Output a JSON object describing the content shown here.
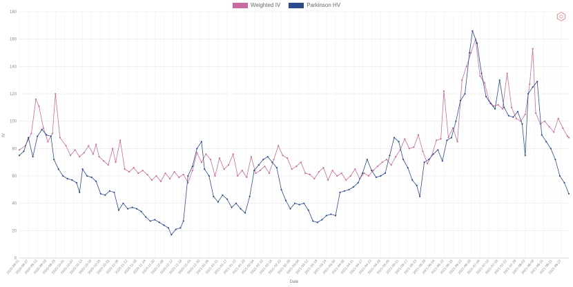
{
  "chart_data": {
    "type": "line",
    "title": "",
    "xlabel": "Date",
    "ylabel": "IV",
    "ylim": [
      0,
      180
    ],
    "yticks": [
      0,
      20,
      40,
      60,
      80,
      100,
      120,
      140,
      160,
      180
    ],
    "grid": true,
    "legend_position": "top-center",
    "x_range": [
      "2020-09-01",
      "2021-09-01"
    ],
    "xtick_labels": [
      "2020-09-01",
      "2020-09-07",
      "2020-09-13",
      "2020-09-19",
      "2020-09-25",
      "2020-10-01",
      "2020-10-07",
      "2020-10-13",
      "2020-10-19",
      "2020-10-25",
      "2020-10-31",
      "2020-11-06",
      "2020-11-12",
      "2020-11-18",
      "2020-11-24",
      "2020-11-30",
      "2020-12-06",
      "2020-12-12",
      "2020-12-18",
      "2020-12-24",
      "2020-12-30",
      "2021-01-05",
      "2021-01-11",
      "2021-01-17",
      "2021-01-23",
      "2021-01-29",
      "2021-02-04",
      "2021-02-10",
      "2021-02-16",
      "2021-02-22",
      "2021-02-28",
      "2021-03-06",
      "2021-03-12",
      "2021-03-18",
      "2021-03-24",
      "2021-03-30",
      "2021-04-05",
      "2021-04-11",
      "2021-04-17",
      "2021-04-23",
      "2021-04-29",
      "2021-05-05",
      "2021-05-11",
      "2021-05-17",
      "2021-05-23",
      "2021-05-29",
      "2021-06-04",
      "2021-06-10",
      "2021-06-16",
      "2021-06-22",
      "2021-06-28",
      "2021-07-04",
      "2021-07-10",
      "2021-07-16",
      "2021-07-22",
      "2021-07-28",
      "2021-08-03",
      "2021-08-09",
      "2021-08-15",
      "2021-08-21",
      "2021-08-27"
    ],
    "series": [
      {
        "name": "Weighted IV",
        "color": "#c86b9e",
        "points": [
          [
            "2020-09-01",
            79
          ],
          [
            "2020-09-05",
            82
          ],
          [
            "2020-09-09",
            91
          ],
          [
            "2020-09-12",
            116
          ],
          [
            "2020-09-14",
            111
          ],
          [
            "2020-09-17",
            95
          ],
          [
            "2020-09-20",
            85
          ],
          [
            "2020-09-23",
            91
          ],
          [
            "2020-09-25",
            120
          ],
          [
            "2020-09-28",
            88
          ],
          [
            "2020-10-02",
            82
          ],
          [
            "2020-10-05",
            75
          ],
          [
            "2020-10-08",
            79
          ],
          [
            "2020-10-11",
            74
          ],
          [
            "2020-10-14",
            77
          ],
          [
            "2020-10-17",
            82
          ],
          [
            "2020-10-20",
            76
          ],
          [
            "2020-10-22",
            83
          ],
          [
            "2020-10-24",
            74
          ],
          [
            "2020-10-27",
            71
          ],
          [
            "2020-10-30",
            68
          ],
          [
            "2020-11-02",
            80
          ],
          [
            "2020-11-04",
            70
          ],
          [
            "2020-11-07",
            86
          ],
          [
            "2020-11-10",
            65
          ],
          [
            "2020-11-13",
            63
          ],
          [
            "2020-11-16",
            66
          ],
          [
            "2020-11-19",
            62
          ],
          [
            "2020-11-22",
            64
          ],
          [
            "2020-11-25",
            61
          ],
          [
            "2020-11-28",
            57
          ],
          [
            "2020-12-01",
            60
          ],
          [
            "2020-12-04",
            56
          ],
          [
            "2020-12-07",
            62
          ],
          [
            "2020-12-10",
            58
          ],
          [
            "2020-12-13",
            63
          ],
          [
            "2020-12-16",
            59
          ],
          [
            "2020-12-19",
            61
          ],
          [
            "2020-12-22",
            55
          ],
          [
            "2020-12-25",
            64
          ],
          [
            "2020-12-28",
            77
          ],
          [
            "2020-12-31",
            70
          ],
          [
            "2021-01-03",
            76
          ],
          [
            "2021-01-06",
            72
          ],
          [
            "2021-01-09",
            60
          ],
          [
            "2021-01-12",
            73
          ],
          [
            "2021-01-15",
            65
          ],
          [
            "2021-01-18",
            68
          ],
          [
            "2021-01-21",
            76
          ],
          [
            "2021-01-24",
            60
          ],
          [
            "2021-01-27",
            64
          ],
          [
            "2021-01-30",
            59
          ],
          [
            "2021-02-02",
            74
          ],
          [
            "2021-02-05",
            62
          ],
          [
            "2021-02-08",
            64
          ],
          [
            "2021-02-11",
            67
          ],
          [
            "2021-02-14",
            62
          ],
          [
            "2021-02-17",
            72
          ],
          [
            "2021-02-20",
            82
          ],
          [
            "2021-02-23",
            75
          ],
          [
            "2021-02-26",
            73
          ],
          [
            "2021-03-01",
            65
          ],
          [
            "2021-03-04",
            67
          ],
          [
            "2021-03-07",
            70
          ],
          [
            "2021-03-10",
            62
          ],
          [
            "2021-03-13",
            61
          ],
          [
            "2021-03-16",
            58
          ],
          [
            "2021-03-19",
            63
          ],
          [
            "2021-03-22",
            66
          ],
          [
            "2021-03-25",
            57
          ],
          [
            "2021-03-28",
            64
          ],
          [
            "2021-03-31",
            60
          ],
          [
            "2021-04-03",
            62
          ],
          [
            "2021-04-06",
            57
          ],
          [
            "2021-04-09",
            60
          ],
          [
            "2021-04-12",
            65
          ],
          [
            "2021-04-15",
            58
          ],
          [
            "2021-04-18",
            62
          ],
          [
            "2021-04-21",
            60
          ],
          [
            "2021-04-24",
            64
          ],
          [
            "2021-04-27",
            67
          ],
          [
            "2021-04-30",
            70
          ],
          [
            "2021-05-03",
            72
          ],
          [
            "2021-05-06",
            68
          ],
          [
            "2021-05-09",
            74
          ],
          [
            "2021-05-12",
            79
          ],
          [
            "2021-05-15",
            87
          ],
          [
            "2021-05-18",
            80
          ],
          [
            "2021-05-21",
            81
          ],
          [
            "2021-05-24",
            90
          ],
          [
            "2021-05-27",
            78
          ],
          [
            "2021-05-30",
            69
          ],
          [
            "2021-06-02",
            75
          ],
          [
            "2021-06-05",
            86
          ],
          [
            "2021-06-08",
            87
          ],
          [
            "2021-06-10",
            122
          ],
          [
            "2021-06-13",
            88
          ],
          [
            "2021-06-16",
            95
          ],
          [
            "2021-06-19",
            85
          ],
          [
            "2021-06-22",
            130
          ],
          [
            "2021-06-25",
            140
          ],
          [
            "2021-06-28",
            150
          ],
          [
            "2021-07-01",
            160
          ],
          [
            "2021-07-04",
            133
          ],
          [
            "2021-07-07",
            128
          ],
          [
            "2021-07-10",
            115
          ],
          [
            "2021-07-13",
            111
          ],
          [
            "2021-07-16",
            112
          ],
          [
            "2021-07-19",
            109
          ],
          [
            "2021-07-22",
            135
          ],
          [
            "2021-07-25",
            110
          ],
          [
            "2021-07-28",
            102
          ],
          [
            "2021-07-31",
            100
          ],
          [
            "2021-08-03",
            105
          ],
          [
            "2021-08-06",
            127
          ],
          [
            "2021-08-08",
            153
          ],
          [
            "2021-08-10",
            106
          ],
          [
            "2021-08-13",
            98
          ],
          [
            "2021-08-16",
            100
          ],
          [
            "2021-08-19",
            96
          ],
          [
            "2021-08-22",
            92
          ],
          [
            "2021-08-25",
            102
          ],
          [
            "2021-08-28",
            95
          ],
          [
            "2021-08-31",
            89
          ],
          [
            "2021-09-01",
            88
          ]
        ]
      },
      {
        "name": "Parkinson HV",
        "color": "#2b4a8b",
        "points": [
          [
            "2020-09-01",
            75
          ],
          [
            "2020-09-04",
            78
          ],
          [
            "2020-09-07",
            88
          ],
          [
            "2020-09-10",
            74
          ],
          [
            "2020-09-13",
            89
          ],
          [
            "2020-09-16",
            94
          ],
          [
            "2020-09-19",
            90
          ],
          [
            "2020-09-22",
            89
          ],
          [
            "2020-09-24",
            72
          ],
          [
            "2020-09-27",
            65
          ],
          [
            "2020-09-30",
            60
          ],
          [
            "2020-10-03",
            58
          ],
          [
            "2020-10-06",
            57
          ],
          [
            "2020-10-09",
            55
          ],
          [
            "2020-10-11",
            48
          ],
          [
            "2020-10-13",
            65
          ],
          [
            "2020-10-16",
            60
          ],
          [
            "2020-10-19",
            59
          ],
          [
            "2020-10-22",
            56
          ],
          [
            "2020-10-25",
            47
          ],
          [
            "2020-10-28",
            46
          ],
          [
            "2020-10-31",
            49
          ],
          [
            "2020-11-03",
            48
          ],
          [
            "2020-11-06",
            35
          ],
          [
            "2020-11-09",
            40
          ],
          [
            "2020-11-12",
            36
          ],
          [
            "2020-11-15",
            37
          ],
          [
            "2020-11-18",
            36
          ],
          [
            "2020-11-21",
            34
          ],
          [
            "2020-11-24",
            30
          ],
          [
            "2020-11-27",
            27
          ],
          [
            "2020-11-30",
            28
          ],
          [
            "2020-12-03",
            26
          ],
          [
            "2020-12-06",
            24
          ],
          [
            "2020-12-09",
            22
          ],
          [
            "2020-12-11",
            17
          ],
          [
            "2020-12-14",
            21
          ],
          [
            "2020-12-17",
            22
          ],
          [
            "2020-12-19",
            27
          ],
          [
            "2020-12-22",
            60
          ],
          [
            "2020-12-25",
            67
          ],
          [
            "2020-12-28",
            80
          ],
          [
            "2020-12-31",
            85
          ],
          [
            "2021-01-02",
            65
          ],
          [
            "2021-01-05",
            60
          ],
          [
            "2021-01-08",
            45
          ],
          [
            "2021-01-11",
            41
          ],
          [
            "2021-01-14",
            46
          ],
          [
            "2021-01-17",
            43
          ],
          [
            "2021-01-20",
            37
          ],
          [
            "2021-01-23",
            40
          ],
          [
            "2021-01-26",
            36
          ],
          [
            "2021-01-29",
            33
          ],
          [
            "2021-02-01",
            45
          ],
          [
            "2021-02-04",
            64
          ],
          [
            "2021-02-07",
            68
          ],
          [
            "2021-02-10",
            72
          ],
          [
            "2021-02-13",
            74
          ],
          [
            "2021-02-16",
            70
          ],
          [
            "2021-02-19",
            66
          ],
          [
            "2021-02-22",
            50
          ],
          [
            "2021-02-25",
            42
          ],
          [
            "2021-02-28",
            36
          ],
          [
            "2021-03-03",
            40
          ],
          [
            "2021-03-06",
            39
          ],
          [
            "2021-03-09",
            40
          ],
          [
            "2021-03-12",
            35
          ],
          [
            "2021-03-15",
            27
          ],
          [
            "2021-03-18",
            26
          ],
          [
            "2021-03-21",
            28
          ],
          [
            "2021-03-24",
            31
          ],
          [
            "2021-03-27",
            32
          ],
          [
            "2021-03-30",
            31
          ],
          [
            "2021-04-02",
            48
          ],
          [
            "2021-04-05",
            49
          ],
          [
            "2021-04-08",
            50
          ],
          [
            "2021-04-11",
            52
          ],
          [
            "2021-04-14",
            55
          ],
          [
            "2021-04-17",
            62
          ],
          [
            "2021-04-20",
            72
          ],
          [
            "2021-04-23",
            64
          ],
          [
            "2021-04-26",
            59
          ],
          [
            "2021-04-29",
            60
          ],
          [
            "2021-05-02",
            62
          ],
          [
            "2021-05-05",
            75
          ],
          [
            "2021-05-08",
            88
          ],
          [
            "2021-05-11",
            85
          ],
          [
            "2021-05-14",
            72
          ],
          [
            "2021-05-17",
            66
          ],
          [
            "2021-05-20",
            57
          ],
          [
            "2021-05-23",
            53
          ],
          [
            "2021-05-25",
            45
          ],
          [
            "2021-05-28",
            70
          ],
          [
            "2021-05-31",
            72
          ],
          [
            "2021-06-03",
            76
          ],
          [
            "2021-06-06",
            79
          ],
          [
            "2021-06-09",
            71
          ],
          [
            "2021-06-12",
            86
          ],
          [
            "2021-06-15",
            88
          ],
          [
            "2021-06-18",
            100
          ],
          [
            "2021-06-21",
            115
          ],
          [
            "2021-06-24",
            120
          ],
          [
            "2021-06-27",
            150
          ],
          [
            "2021-06-29",
            166
          ],
          [
            "2021-07-02",
            157
          ],
          [
            "2021-07-05",
            135
          ],
          [
            "2021-07-08",
            118
          ],
          [
            "2021-07-11",
            113
          ],
          [
            "2021-07-14",
            109
          ],
          [
            "2021-07-17",
            130
          ],
          [
            "2021-07-20",
            110
          ],
          [
            "2021-07-23",
            104
          ],
          [
            "2021-07-26",
            103
          ],
          [
            "2021-07-29",
            107
          ],
          [
            "2021-08-01",
            98
          ],
          [
            "2021-08-03",
            75
          ],
          [
            "2021-08-05",
            120
          ],
          [
            "2021-08-08",
            125
          ],
          [
            "2021-08-11",
            129
          ],
          [
            "2021-08-14",
            90
          ],
          [
            "2021-08-17",
            85
          ],
          [
            "2021-08-20",
            80
          ],
          [
            "2021-08-23",
            72
          ],
          [
            "2021-08-26",
            60
          ],
          [
            "2021-08-29",
            55
          ],
          [
            "2021-09-01",
            47
          ]
        ]
      }
    ]
  },
  "logo": {
    "name": "brand-logo"
  }
}
